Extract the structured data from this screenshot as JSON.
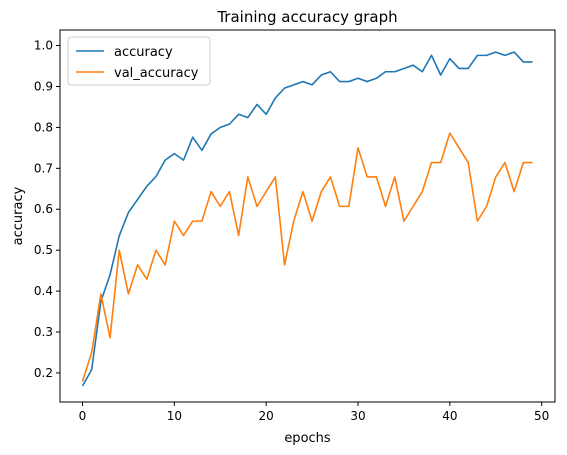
{
  "chart_data": {
    "type": "line",
    "title": "Training accuracy graph",
    "xlabel": "epochs",
    "ylabel": "accuracy",
    "xlim": [
      -2.45,
      51.45
    ],
    "ylim": [
      0.129,
      1.038
    ],
    "xticks": [
      0,
      10,
      20,
      30,
      40,
      50
    ],
    "yticks": [
      0.2,
      0.3,
      0.4,
      0.5,
      0.6,
      0.7,
      0.8,
      0.9,
      1.0
    ],
    "ytick_labels": [
      "0.2",
      "0.3",
      "0.4",
      "0.5",
      "0.6",
      "0.7",
      "0.8",
      "0.9",
      "1.0"
    ],
    "grid": false,
    "legend_position": "top-left",
    "x": [
      0,
      1,
      2,
      3,
      4,
      5,
      6,
      7,
      8,
      9,
      10,
      11,
      12,
      13,
      14,
      15,
      16,
      17,
      18,
      19,
      20,
      21,
      22,
      23,
      24,
      25,
      26,
      27,
      28,
      29,
      30,
      31,
      32,
      33,
      34,
      35,
      36,
      37,
      38,
      39,
      40,
      41,
      42,
      43,
      44,
      45,
      46,
      47,
      48,
      49
    ],
    "series": [
      {
        "name": "accuracy",
        "color": "#1f77b4",
        "values": [
          0.168,
          0.208,
          0.375,
          0.44,
          0.535,
          0.592,
          0.624,
          0.656,
          0.68,
          0.72,
          0.736,
          0.72,
          0.776,
          0.744,
          0.784,
          0.8,
          0.808,
          0.832,
          0.824,
          0.856,
          0.832,
          0.872,
          0.896,
          0.904,
          0.912,
          0.904,
          0.928,
          0.936,
          0.912,
          0.912,
          0.92,
          0.912,
          0.92,
          0.936,
          0.936,
          0.944,
          0.952,
          0.936,
          0.976,
          0.928,
          0.968,
          0.944,
          0.944,
          0.976,
          0.976,
          0.984,
          0.976,
          0.984,
          0.96,
          0.96
        ]
      },
      {
        "name": "val_accuracy",
        "color": "#ff7f0e",
        "values": [
          0.179,
          0.25,
          0.393,
          0.286,
          0.5,
          0.393,
          0.464,
          0.429,
          0.5,
          0.464,
          0.571,
          0.536,
          0.571,
          0.571,
          0.643,
          0.607,
          0.643,
          0.536,
          0.679,
          0.607,
          0.643,
          0.679,
          0.464,
          0.571,
          0.643,
          0.571,
          0.643,
          0.679,
          0.607,
          0.607,
          0.75,
          0.679,
          0.679,
          0.607,
          0.679,
          0.571,
          0.607,
          0.643,
          0.714,
          0.714,
          0.786,
          0.75,
          0.714,
          0.571,
          0.607,
          0.679,
          0.714,
          0.643,
          0.714,
          0.714
        ]
      }
    ]
  }
}
